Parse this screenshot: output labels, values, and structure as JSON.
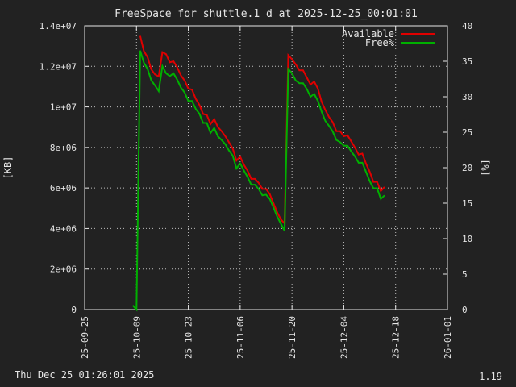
{
  "page": {
    "footer_left": "Thu Dec 25 01:26:01 2025",
    "footer_right": "1.19"
  },
  "chart_data": {
    "type": "line",
    "title": "FreeSpace for shuttle.1 d at 2025-12-25_00:01:01",
    "ylabel": "[KB]",
    "y2label": "[%]",
    "xlim": [
      "2025-09-25",
      "2026-01-01"
    ],
    "ylim": [
      0,
      14000000
    ],
    "y2lim": [
      0,
      40
    ],
    "x_ticks": [
      "25-09-25",
      "25-10-09",
      "25-10-23",
      "25-11-06",
      "25-11-20",
      "25-12-04",
      "25-12-18",
      "26-01-01"
    ],
    "y_ticks": [
      "0",
      "2e+06",
      "4e+06",
      "6e+06",
      "8e+06",
      "1e+07",
      "1.2e+07",
      "1.4e+07"
    ],
    "y2_ticks": [
      "0",
      "5",
      "10",
      "15",
      "20",
      "25",
      "30",
      "35",
      "40"
    ],
    "grid": true,
    "legend_position": "top-right",
    "colors": {
      "background": "#222222",
      "foreground": "#e6e6e6",
      "grid": "#bfbfbf",
      "available": "#e00000",
      "free_pct": "#00b000"
    },
    "series": [
      {
        "name": "Available",
        "axis": "left",
        "color": "#e00000",
        "points": [
          [
            "2025-10-10",
            13500000
          ],
          [
            "2025-10-11",
            12750000
          ],
          [
            "2025-10-12",
            12450000
          ],
          [
            "2025-10-13",
            11850000
          ],
          [
            "2025-10-14",
            11600000
          ],
          [
            "2025-10-15",
            11500000
          ],
          [
            "2025-10-16",
            12700000
          ],
          [
            "2025-10-17",
            12600000
          ],
          [
            "2025-10-18",
            12200000
          ],
          [
            "2025-10-19",
            12250000
          ],
          [
            "2025-10-20",
            11950000
          ],
          [
            "2025-10-21",
            11550000
          ],
          [
            "2025-10-22",
            11300000
          ],
          [
            "2025-10-23",
            10900000
          ],
          [
            "2025-10-24",
            10850000
          ],
          [
            "2025-10-25",
            10400000
          ],
          [
            "2025-10-26",
            10100000
          ],
          [
            "2025-10-27",
            9650000
          ],
          [
            "2025-10-28",
            9600000
          ],
          [
            "2025-10-29",
            9150000
          ],
          [
            "2025-10-30",
            9400000
          ],
          [
            "2025-10-31",
            9000000
          ],
          [
            "2025-11-01",
            8800000
          ],
          [
            "2025-11-02",
            8550000
          ],
          [
            "2025-11-03",
            8250000
          ],
          [
            "2025-11-04",
            7950000
          ],
          [
            "2025-11-05",
            7350000
          ],
          [
            "2025-11-06",
            7550000
          ],
          [
            "2025-11-07",
            7150000
          ],
          [
            "2025-11-08",
            6850000
          ],
          [
            "2025-11-09",
            6450000
          ],
          [
            "2025-11-10",
            6450000
          ],
          [
            "2025-11-11",
            6250000
          ],
          [
            "2025-11-12",
            5950000
          ],
          [
            "2025-11-13",
            5950000
          ],
          [
            "2025-11-14",
            5700000
          ],
          [
            "2025-11-15",
            5250000
          ],
          [
            "2025-11-16",
            4800000
          ],
          [
            "2025-11-17",
            4450000
          ],
          [
            "2025-11-18",
            4250000
          ],
          [
            "2025-11-19",
            12550000
          ],
          [
            "2025-11-20",
            12350000
          ],
          [
            "2025-11-21",
            12100000
          ],
          [
            "2025-11-22",
            11800000
          ],
          [
            "2025-11-23",
            11800000
          ],
          [
            "2025-11-24",
            11450000
          ],
          [
            "2025-11-25",
            11100000
          ],
          [
            "2025-11-26",
            11250000
          ],
          [
            "2025-11-27",
            10900000
          ],
          [
            "2025-11-28",
            10250000
          ],
          [
            "2025-11-29",
            9850000
          ],
          [
            "2025-11-30",
            9500000
          ],
          [
            "2025-12-01",
            9250000
          ],
          [
            "2025-12-02",
            8800000
          ],
          [
            "2025-12-03",
            8800000
          ],
          [
            "2025-12-04",
            8550000
          ],
          [
            "2025-12-05",
            8600000
          ],
          [
            "2025-12-06",
            8300000
          ],
          [
            "2025-12-07",
            8000000
          ],
          [
            "2025-12-08",
            7650000
          ],
          [
            "2025-12-09",
            7700000
          ],
          [
            "2025-12-10",
            7200000
          ],
          [
            "2025-12-11",
            6800000
          ],
          [
            "2025-12-12",
            6300000
          ],
          [
            "2025-12-13",
            6300000
          ],
          [
            "2025-12-14",
            5850000
          ],
          [
            "2025-12-15",
            6050000
          ]
        ]
      },
      {
        "name": "Free%",
        "axis": "right",
        "color": "#00b000",
        "points": [
          [
            "2025-10-08",
            0.6
          ],
          [
            "2025-10-09",
            0.0
          ],
          [
            "2025-10-10",
            36.5
          ],
          [
            "2025-10-11",
            34.8
          ],
          [
            "2025-10-12",
            33.9
          ],
          [
            "2025-10-13",
            32.3
          ],
          [
            "2025-10-14",
            31.6
          ],
          [
            "2025-10-15",
            30.8
          ],
          [
            "2025-10-16",
            34.3
          ],
          [
            "2025-10-17",
            33.3
          ],
          [
            "2025-10-18",
            32.9
          ],
          [
            "2025-10-19",
            33.3
          ],
          [
            "2025-10-20",
            32.4
          ],
          [
            "2025-10-21",
            31.3
          ],
          [
            "2025-10-22",
            30.6
          ],
          [
            "2025-10-23",
            29.4
          ],
          [
            "2025-10-24",
            29.4
          ],
          [
            "2025-10-25",
            28.3
          ],
          [
            "2025-10-26",
            27.6
          ],
          [
            "2025-10-27",
            26.3
          ],
          [
            "2025-10-28",
            26.3
          ],
          [
            "2025-10-29",
            24.9
          ],
          [
            "2025-10-30",
            25.6
          ],
          [
            "2025-10-31",
            24.4
          ],
          [
            "2025-11-01",
            23.9
          ],
          [
            "2025-11-02",
            23.3
          ],
          [
            "2025-11-03",
            22.4
          ],
          [
            "2025-11-04",
            21.7
          ],
          [
            "2025-11-05",
            19.9
          ],
          [
            "2025-11-06",
            20.6
          ],
          [
            "2025-11-07",
            19.6
          ],
          [
            "2025-11-08",
            18.7
          ],
          [
            "2025-11-09",
            17.6
          ],
          [
            "2025-11-10",
            17.6
          ],
          [
            "2025-11-11",
            17.0
          ],
          [
            "2025-11-12",
            16.1
          ],
          [
            "2025-11-13",
            16.2
          ],
          [
            "2025-11-14",
            15.6
          ],
          [
            "2025-11-15",
            14.4
          ],
          [
            "2025-11-16",
            13.1
          ],
          [
            "2025-11-17",
            12.1
          ],
          [
            "2025-11-18",
            11.1
          ],
          [
            "2025-11-19",
            33.9
          ],
          [
            "2025-11-20",
            33.3
          ],
          [
            "2025-11-21",
            32.3
          ],
          [
            "2025-11-22",
            31.9
          ],
          [
            "2025-11-23",
            31.9
          ],
          [
            "2025-11-24",
            31.1
          ],
          [
            "2025-11-25",
            30.0
          ],
          [
            "2025-11-26",
            30.4
          ],
          [
            "2025-11-27",
            29.4
          ],
          [
            "2025-11-28",
            27.9
          ],
          [
            "2025-11-29",
            26.6
          ],
          [
            "2025-11-30",
            25.9
          ],
          [
            "2025-12-01",
            25.1
          ],
          [
            "2025-12-02",
            23.9
          ],
          [
            "2025-12-03",
            23.6
          ],
          [
            "2025-12-04",
            23.1
          ],
          [
            "2025-12-05",
            23.1
          ],
          [
            "2025-12-06",
            22.3
          ],
          [
            "2025-12-07",
            21.6
          ],
          [
            "2025-12-08",
            20.7
          ],
          [
            "2025-12-09",
            20.7
          ],
          [
            "2025-12-10",
            19.4
          ],
          [
            "2025-12-11",
            18.1
          ],
          [
            "2025-12-12",
            17.1
          ],
          [
            "2025-12-13",
            17.1
          ],
          [
            "2025-12-14",
            15.6
          ],
          [
            "2025-12-15",
            16.1
          ]
        ]
      }
    ]
  }
}
